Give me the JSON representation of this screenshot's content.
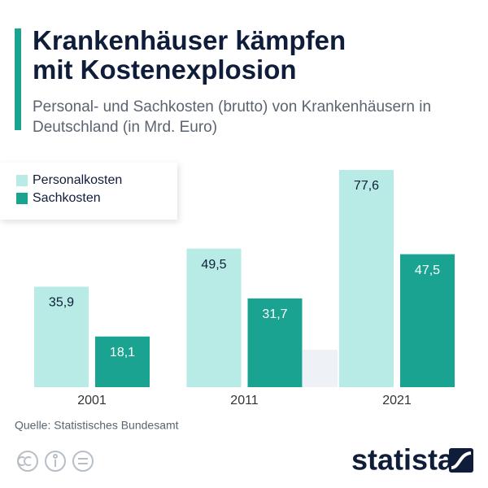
{
  "chart_data": {
    "type": "bar",
    "title": "Krankenhäuser kämpfen mit Kostenexplosion",
    "subtitle": "Personal- und Sachkosten (brutto) von Krankenhäusern in Deutschland (in Mrd. Euro)",
    "categories": [
      "2001",
      "2011",
      "2021"
    ],
    "series": [
      {
        "name": "Personalkosten",
        "color": "#b9ebe6",
        "values": [
          35.9,
          49.5,
          77.6
        ],
        "value_labels": [
          "35,9",
          "49,5",
          "77,6"
        ]
      },
      {
        "name": "Sachkosten",
        "color": "#1aa391",
        "values": [
          18.1,
          31.7,
          47.5
        ],
        "value_labels": [
          "18,1",
          "31,7",
          "47,5"
        ]
      }
    ],
    "legend": "top-left",
    "source": "Quelle: Statistisches Bundesamt",
    "brand": "statista"
  }
}
